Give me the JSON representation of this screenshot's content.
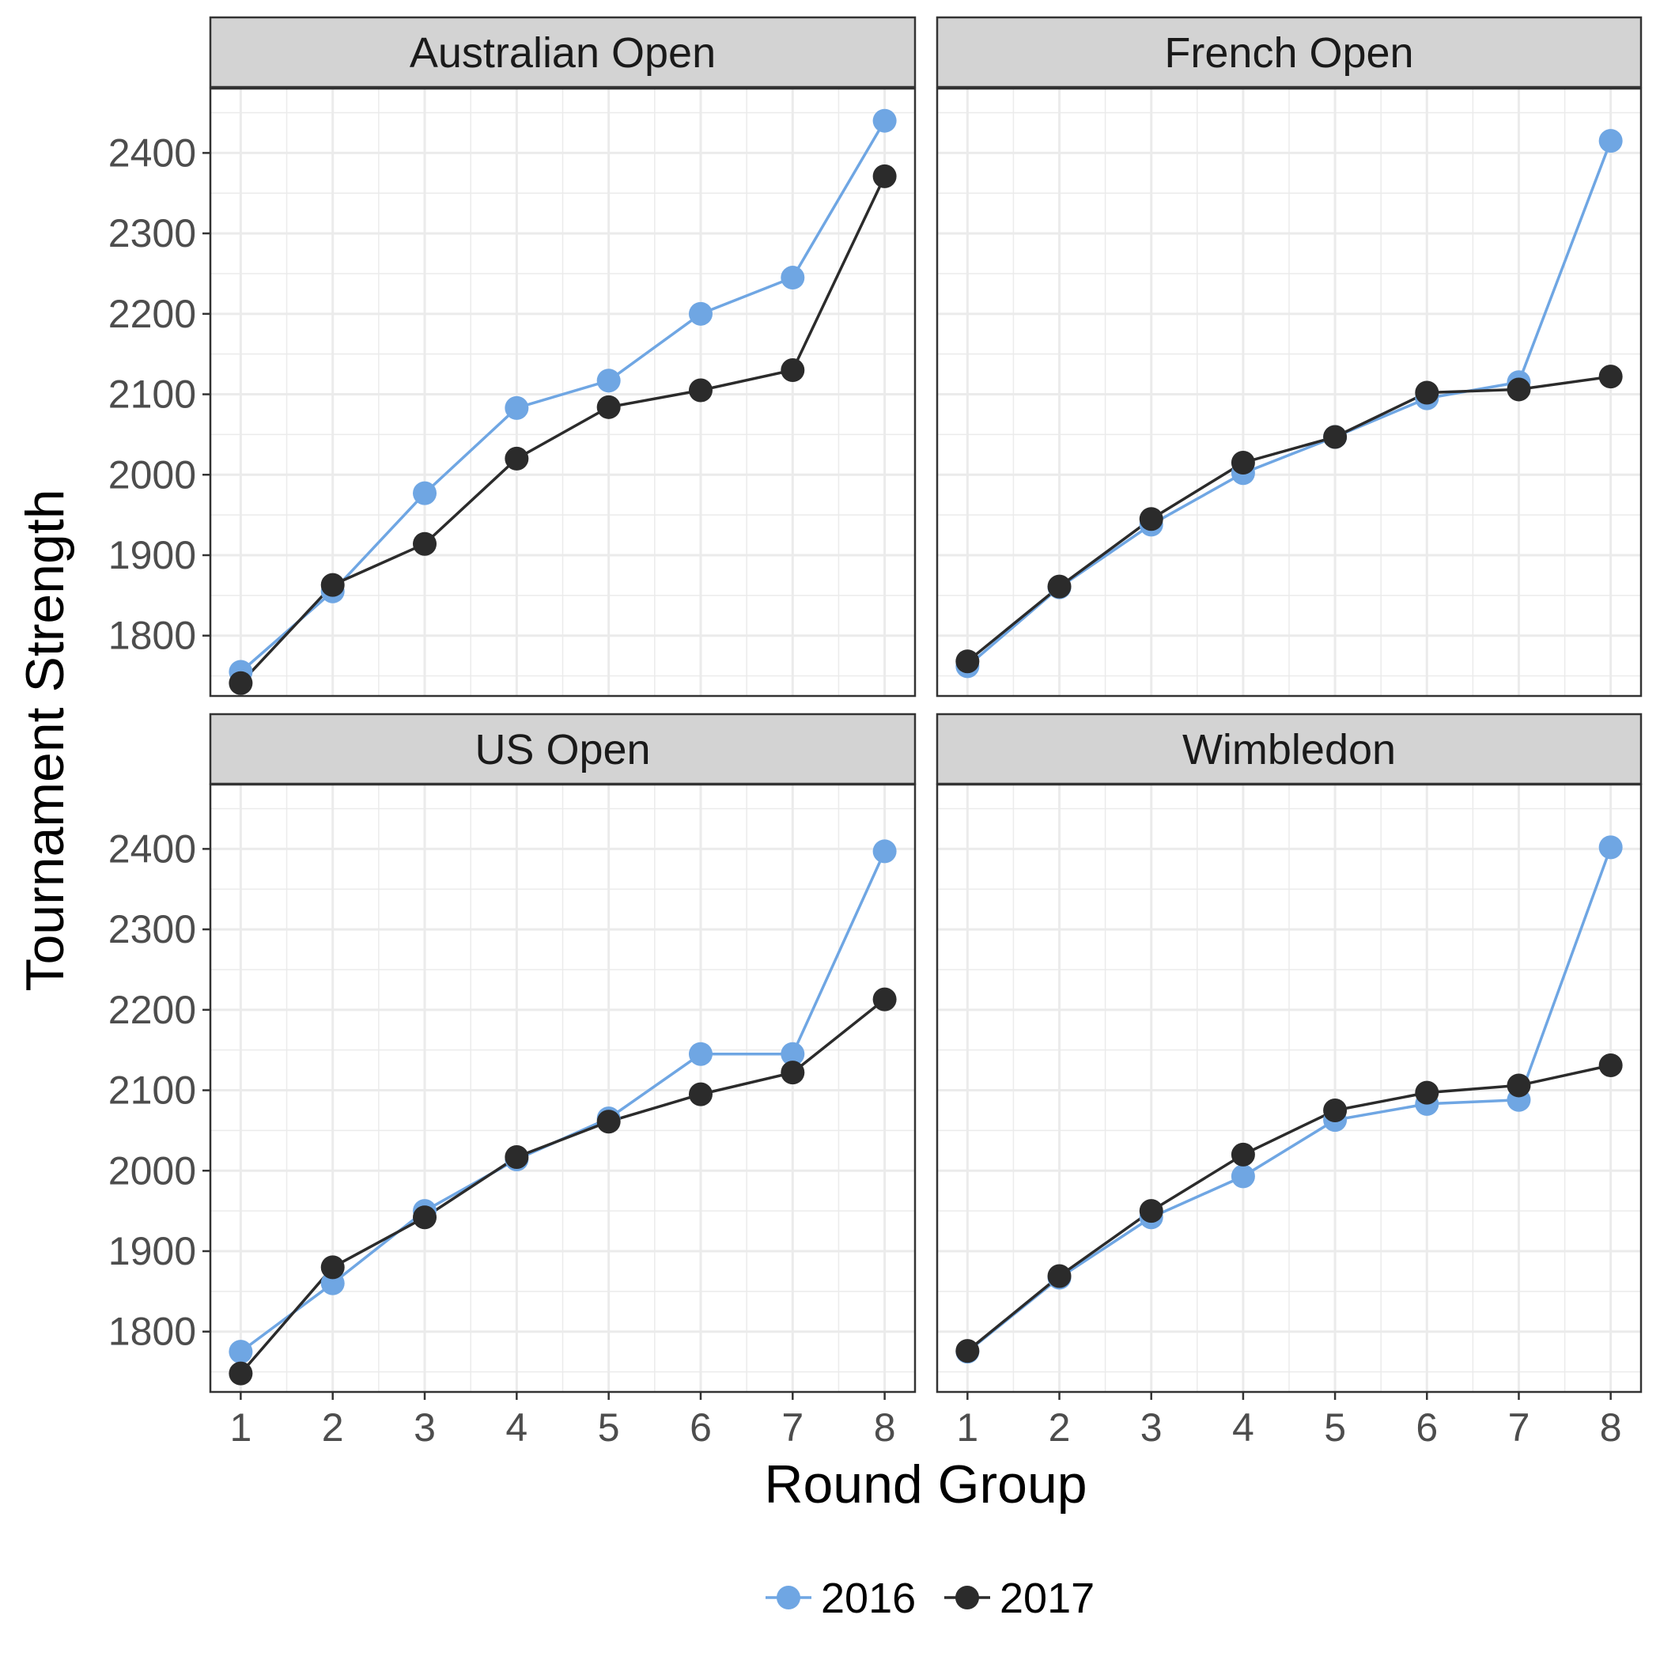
{
  "chart_data": {
    "type": "line",
    "xlabel": "Round Group",
    "ylabel": "Tournament Strength",
    "x": [
      1,
      2,
      3,
      4,
      5,
      6,
      7,
      8
    ],
    "x_ticks": [
      "1",
      "2",
      "3",
      "4",
      "5",
      "6",
      "7",
      "8"
    ],
    "y_ticks": [
      "1800",
      "1900",
      "2000",
      "2100",
      "2200",
      "2300",
      "2400"
    ],
    "ylim": [
      1725,
      2480
    ],
    "xlim": [
      0.67,
      8.33
    ],
    "grid": true,
    "legend": {
      "position": "bottom",
      "entries": [
        "2016",
        "2017"
      ]
    },
    "colors": {
      "2016": "#6fa6e3",
      "2017": "#2b2b2b",
      "strip_fill": "#d3d3d3",
      "grid": "#ebebeb",
      "panel_border": "#333333"
    },
    "panels": [
      {
        "title": "Australian Open",
        "series": [
          {
            "name": "2016",
            "values": [
              1755,
              1855,
              1977,
              2083,
              2117,
              2200,
              2245,
              2440
            ]
          },
          {
            "name": "2017",
            "values": [
              1741,
              1863,
              1914,
              2020,
              2084,
              2105,
              2130,
              2371
            ]
          }
        ]
      },
      {
        "title": "French Open",
        "series": [
          {
            "name": "2016",
            "values": [
              1762,
              1860,
              1938,
              2002,
              2047,
              2095,
              2115,
              2415
            ]
          },
          {
            "name": "2017",
            "values": [
              1768,
              1861,
              1945,
              2015,
              2047,
              2102,
              2106,
              2122
            ]
          }
        ]
      },
      {
        "title": "US Open",
        "series": [
          {
            "name": "2016",
            "values": [
              1775,
              1860,
              1950,
              2014,
              2065,
              2145,
              2145,
              2397
            ]
          },
          {
            "name": "2017",
            "values": [
              1748,
              1880,
              1942,
              2017,
              2061,
              2095,
              2122,
              2213
            ]
          }
        ]
      },
      {
        "title": "Wimbledon",
        "series": [
          {
            "name": "2016",
            "values": [
              1775,
              1867,
              1942,
              1993,
              2063,
              2083,
              2088,
              2402
            ]
          },
          {
            "name": "2017",
            "values": [
              1776,
              1869,
              1950,
              2020,
              2075,
              2097,
              2106,
              2131
            ]
          }
        ]
      }
    ]
  }
}
